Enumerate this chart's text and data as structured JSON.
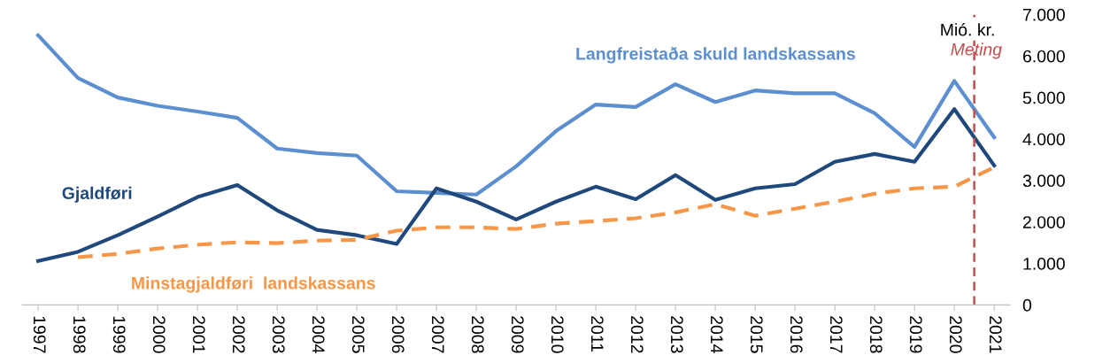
{
  "chart_data": {
    "type": "line",
    "x": [
      1997,
      1998,
      1999,
      2000,
      2001,
      2002,
      2003,
      2004,
      2005,
      2006,
      2007,
      2008,
      2009,
      2010,
      2011,
      2012,
      2013,
      2014,
      2015,
      2016,
      2017,
      2018,
      2019,
      2020,
      2021
    ],
    "xlim": [
      1996.6,
      2021.4
    ],
    "xticks": [
      1997,
      1998,
      1999,
      2000,
      2001,
      2002,
      2003,
      2004,
      2005,
      2006,
      2007,
      2008,
      2009,
      2010,
      2011,
      2012,
      2013,
      2014,
      2015,
      2016,
      2017,
      2018,
      2019,
      2020,
      2021
    ],
    "ylim": [
      0,
      7000
    ],
    "yticks": [
      {
        "value": 0,
        "label": "0"
      },
      {
        "value": 1000,
        "label": "1.000"
      },
      {
        "value": 2000,
        "label": "2.000"
      },
      {
        "value": 3000,
        "label": "3.000"
      },
      {
        "value": 4000,
        "label": "4.000"
      },
      {
        "value": 5000,
        "label": "5.000"
      },
      {
        "value": 6000,
        "label": "6.000"
      },
      {
        "value": 7000,
        "label": "7.000"
      }
    ],
    "ylabel": "Mió. kr.",
    "grid": false,
    "legend": false,
    "series": [
      {
        "name": "Langfreistaða skuld landskassans",
        "color": "#5b8fd0",
        "line_style": "solid",
        "values": [
          6500,
          5470,
          5000,
          4800,
          4660,
          4510,
          3770,
          3660,
          3600,
          2740,
          2700,
          2660,
          3340,
          4190,
          4830,
          4770,
          5320,
          4890,
          5170,
          5100,
          5100,
          4620,
          3810,
          5400,
          4040
        ]
      },
      {
        "name": "Gjaldføri",
        "color": "#1f497d",
        "line_style": "solid",
        "values": [
          1060,
          1280,
          1680,
          2130,
          2600,
          2890,
          2280,
          1810,
          1680,
          1470,
          2810,
          2490,
          2060,
          2490,
          2850,
          2550,
          3130,
          2530,
          2810,
          2910,
          3450,
          3640,
          3450,
          4720,
          3360
        ]
      },
      {
        "name": "Minstagjaldføri  landskassans",
        "color": "#f79646",
        "line_style": "dashed",
        "values": [
          null,
          1150,
          1230,
          1360,
          1450,
          1510,
          1490,
          1550,
          1570,
          1790,
          1870,
          1870,
          1830,
          1960,
          2020,
          2090,
          2230,
          2430,
          2150,
          2320,
          2490,
          2680,
          2810,
          2850,
          3320
        ]
      }
    ],
    "ref_lines": [
      {
        "axis": "x",
        "value": 2020.5,
        "label": "Meting",
        "color": "#c0504d",
        "line_style": "dashed"
      }
    ]
  }
}
